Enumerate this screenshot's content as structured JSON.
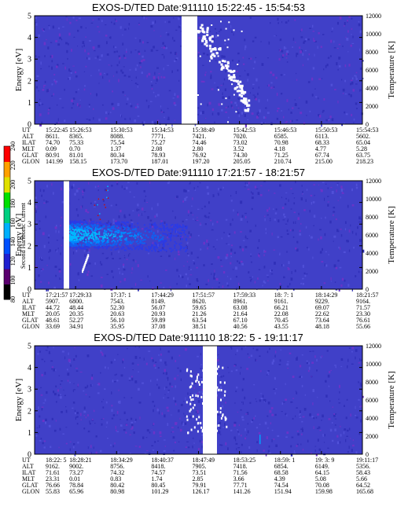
{
  "chart_data": [
    {
      "type": "heatmap",
      "title": "EXOS-D/TED   Date:911110  15:22:45 - 15:54:53",
      "ylabel": "Energy [eV]",
      "ylabel_right": "Temperature [K]",
      "ylim": [
        0,
        5
      ],
      "yticks": [
        "0",
        "1",
        "2",
        "3",
        "4",
        "5"
      ],
      "ylim_right": [
        0,
        12000
      ],
      "yticks_right": [
        "0",
        "2000",
        "4000",
        "6000",
        "8000",
        "10000",
        "12000"
      ],
      "row_labels": [
        "UT",
        "ALT",
        "ILAT",
        "MLT",
        "GLAT",
        "GLON"
      ],
      "columns": [
        [
          "15:22:45",
          "8611.",
          "74.70",
          "0.09",
          "80.91",
          "141.99"
        ],
        [
          "15:26:53",
          "8365.",
          "75.33",
          "0.70",
          "81.01",
          "158.15"
        ],
        [
          "15:30:53",
          "8088.",
          "75.54",
          "1.37",
          "80.34",
          "173.70"
        ],
        [
          "15:34:53",
          "7771.",
          "75.27",
          "2.08",
          "78.93",
          "187.01"
        ],
        [
          "15:38:49",
          "7421.",
          "74.46",
          "2.80",
          "76.92",
          "197.20"
        ],
        [
          "15:42:53",
          "7020.",
          "73.02",
          "3.52",
          "74.30",
          "205.05"
        ],
        [
          "15:46:53",
          "6585.",
          "70.98",
          "4.18",
          "71.25",
          "210.74"
        ],
        [
          "15:50:53",
          "6113.",
          "68.33",
          "4.77",
          "67.74",
          "215.00"
        ],
        [
          "15:54:53",
          "5602.",
          "65.04",
          "5.28",
          "63.75",
          "218.23"
        ]
      ]
    },
    {
      "type": "heatmap",
      "title": "EXOS-D/TED   Date:911110  17:21:57 - 18:21:57",
      "ylabel": "Energy [eV]",
      "ylabel_right": "Temperature [K]",
      "ylim": [
        0,
        5
      ],
      "yticks": [
        "0",
        "1",
        "2",
        "3",
        "4",
        "5"
      ],
      "ylim_right": [
        0,
        12000
      ],
      "yticks_right": [
        "0",
        "2000",
        "4000",
        "6000",
        "8000",
        "10000",
        "12000"
      ],
      "row_labels": [
        "UT",
        "ALT",
        "ILAT",
        "MLT",
        "GLAT",
        "GLON"
      ],
      "columns": [
        [
          "17:21:57",
          "5907.",
          "44.72",
          "20.05",
          "48.61",
          "33.69"
        ],
        [
          "17:29:33",
          "6800.",
          "48.44",
          "20.35",
          "52.27",
          "34.91"
        ],
        [
          "17:37: 1",
          "7543.",
          "52.30",
          "20.63",
          "56.10",
          "35.95"
        ],
        [
          "17:44:29",
          "8149.",
          "56.07",
          "20.93",
          "59.89",
          "37.08"
        ],
        [
          "17:51:57",
          "8620.",
          "59.65",
          "21.26",
          "63.54",
          "38.51"
        ],
        [
          "17:59:33",
          "8961.",
          "63.08",
          "21.64",
          "67.10",
          "40.56"
        ],
        [
          "18: 7: 1",
          "9161.",
          "66.21",
          "22.08",
          "70.45",
          "43.55"
        ],
        [
          "18:14:29",
          "9229.",
          "69.07",
          "22.62",
          "73.64",
          "48.18"
        ],
        [
          "18:21:57",
          "9164.",
          "71.57",
          "23.30",
          "76.61",
          "55.66"
        ]
      ]
    },
    {
      "type": "heatmap",
      "title": "EXOS-D/TED   Date:911110  18:22: 5 - 19:11:17",
      "ylabel": "Energy [eV]",
      "ylabel_right": "Temperature [K]",
      "ylim": [
        0,
        5
      ],
      "yticks": [
        "0",
        "1",
        "2",
        "3",
        "4",
        "5"
      ],
      "ylim_right": [
        0,
        12000
      ],
      "yticks_right": [
        "0",
        "2000",
        "4000",
        "6000",
        "8000",
        "10000",
        "12000"
      ],
      "row_labels": [
        "UT",
        "ALT",
        "ILAT",
        "MLT",
        "GLAT",
        "GLON"
      ],
      "columns": [
        [
          "18:22: 5",
          "9162.",
          "71.61",
          "23.31",
          "76.66",
          "55.83"
        ],
        [
          "18:28:21",
          "9002.",
          "73.27",
          "0.01",
          "78.84",
          "65.96"
        ],
        [
          "18:34:29",
          "8756.",
          "74.32",
          "0.83",
          "80.42",
          "80.98"
        ],
        [
          "18:40:37",
          "8418.",
          "74.57",
          "1.74",
          "80.45",
          "101.29"
        ],
        [
          "18:47:49",
          "7905.",
          "73.51",
          "2.85",
          "79.91",
          "126.17"
        ],
        [
          "18:53:25",
          "7418.",
          "71.56",
          "3.66",
          "77.71",
          "141.26"
        ],
        [
          "18:59: 1",
          "6854.",
          "68.58",
          "4.39",
          "74.54",
          "151.94"
        ],
        [
          "19: 3: 9",
          "6149.",
          "64.15",
          "5.08",
          "70.08",
          "159.98"
        ],
        [
          "19:11:17",
          "5356.",
          "58.43",
          "5.66",
          "64.52",
          "165.68"
        ]
      ]
    }
  ],
  "colorbar": {
    "label": "Second Harmonic Current",
    "ticks": [
      "80",
      "100",
      "120",
      "140",
      "160",
      "180",
      "200",
      "220",
      "240"
    ],
    "colors": [
      "#000000",
      "#5a006e",
      "#2020d0",
      "#0050ff",
      "#00b0ff",
      "#00d080",
      "#00e000",
      "#e0e000",
      "#ffa000",
      "#ff0000"
    ]
  }
}
